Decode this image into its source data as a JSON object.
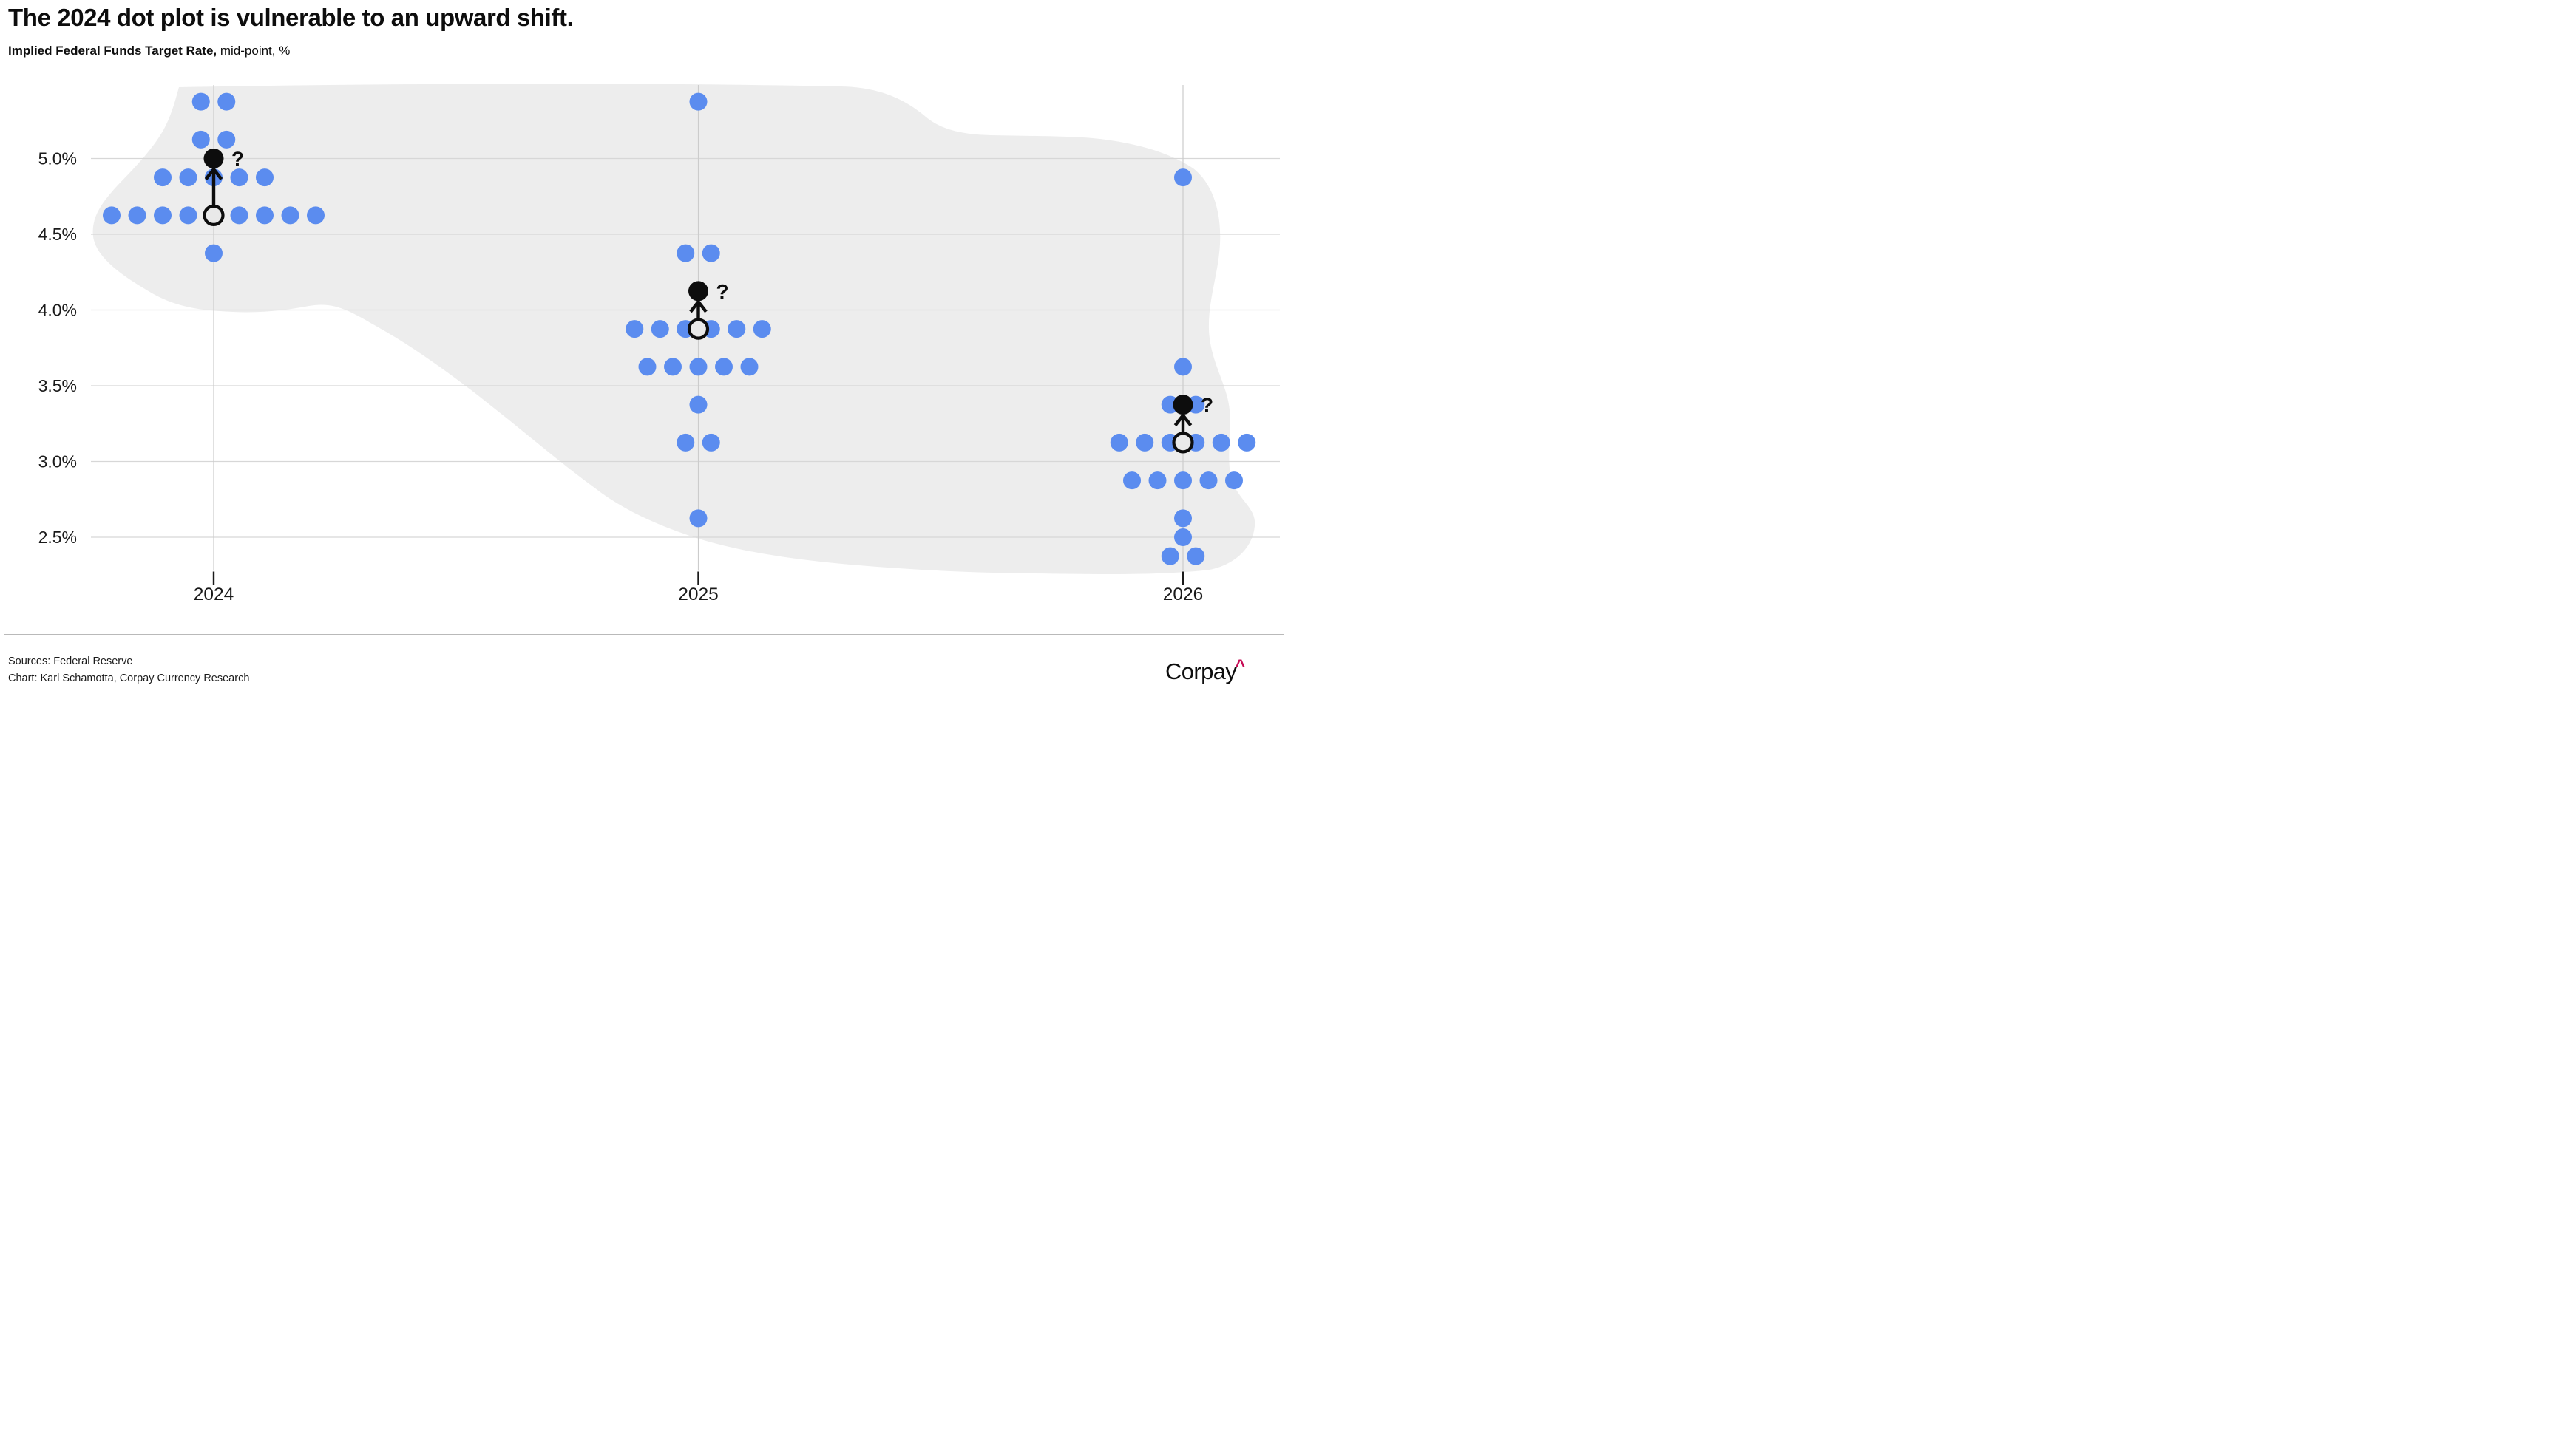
{
  "header": {
    "title": "The 2024 dot plot is vulnerable to an upward shift.",
    "subtitle_bold": "Implied Federal Funds Target Rate,",
    "subtitle_regular": " mid-point, %"
  },
  "footer": {
    "sources_line": "Sources: Federal Reserve",
    "credit_line": "Chart: Karl Schamotta, Corpay Currency Research",
    "logo_text": "Corpay",
    "logo_caret": "^"
  },
  "chart_data": {
    "type": "scatter",
    "variant": "fed-dot-plot",
    "title": "The 2024 dot plot is vulnerable to an upward shift.",
    "subtitle": "Implied Federal Funds Target Rate, mid-point, %",
    "xlabel": "",
    "ylabel": "Implied Federal Funds Target Rate, mid-point, %",
    "ylim": [
      2.25,
      5.55
    ],
    "grid": "horizontal",
    "y_ticks": [
      {
        "label": "5.0%",
        "value": 5.0
      },
      {
        "label": "4.5%",
        "value": 4.5
      },
      {
        "label": "4.0%",
        "value": 4.0
      },
      {
        "label": "3.5%",
        "value": 3.5
      },
      {
        "label": "3.0%",
        "value": 3.0
      },
      {
        "label": "2.5%",
        "value": 2.5
      }
    ],
    "categories": [
      "2024",
      "2025",
      "2026"
    ],
    "series": [
      {
        "name": "2024",
        "dot_rows": [
          {
            "rate": 5.375,
            "count": 2
          },
          {
            "rate": 5.125,
            "count": 2
          },
          {
            "rate": 4.875,
            "count": 5
          },
          {
            "rate": 4.625,
            "count": 9
          },
          {
            "rate": 4.375,
            "count": 1
          }
        ],
        "median_open_marker_rate": 4.625,
        "possible_shift_black_dot_rate": 5.0,
        "annotation": "?"
      },
      {
        "name": "2025",
        "dot_rows": [
          {
            "rate": 5.375,
            "count": 1
          },
          {
            "rate": 4.375,
            "count": 2
          },
          {
            "rate": 3.875,
            "count": 6
          },
          {
            "rate": 3.625,
            "count": 5
          },
          {
            "rate": 3.375,
            "count": 1
          },
          {
            "rate": 3.125,
            "count": 2
          },
          {
            "rate": 2.625,
            "count": 1
          }
        ],
        "median_open_marker_rate": 3.875,
        "possible_shift_black_dot_rate": 4.125,
        "annotation": "?"
      },
      {
        "name": "2026",
        "dot_rows": [
          {
            "rate": 4.875,
            "count": 1
          },
          {
            "rate": 3.625,
            "count": 1
          },
          {
            "rate": 3.375,
            "count": 2
          },
          {
            "rate": 3.125,
            "count": 6
          },
          {
            "rate": 2.875,
            "count": 5
          },
          {
            "rate": 2.625,
            "count": 1
          },
          {
            "rate": 2.5,
            "count": 1
          },
          {
            "rate": 2.375,
            "count": 2
          }
        ],
        "median_open_marker_rate": 3.125,
        "possible_shift_black_dot_rate": 3.375,
        "annotation": "?"
      }
    ],
    "colors": {
      "dot_blue": "#5b8cef",
      "marker_black": "#0d0d0d",
      "open_marker_fill": "#e9e9e9",
      "blob_background": "#ededed",
      "gridline": "#d7d7d7",
      "axis_line": "#cccccc",
      "tick": "#1a1a1a",
      "label_text": "#1a1a1a",
      "logo_caret": "#c60c55"
    }
  }
}
